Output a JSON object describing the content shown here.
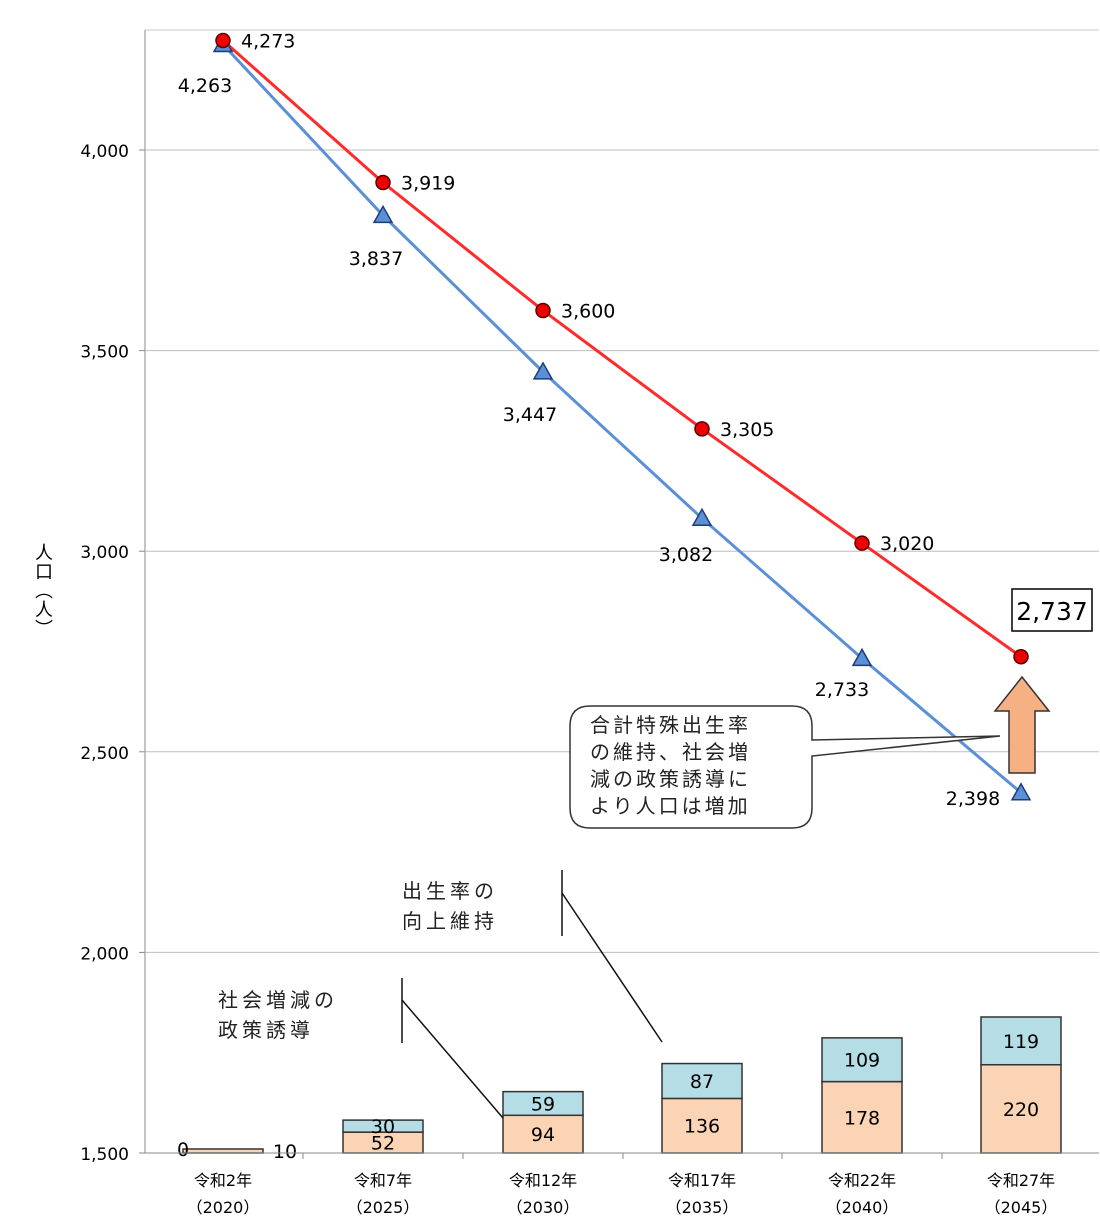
{
  "chart_data": {
    "type": "line+stacked-bar",
    "ylabel": "人口（人）",
    "ylim": [
      1500,
      4250
    ],
    "yticks": [
      "1,500",
      "2,000",
      "2,500",
      "3,000",
      "3,500",
      "4,000"
    ],
    "ytick_values": [
      1500,
      2000,
      2500,
      3000,
      3500,
      4000
    ],
    "categories": [
      "令和2年",
      "令和7年",
      "令和12年",
      "令和17年",
      "令和22年",
      "令和27年"
    ],
    "category_years": [
      "（2020）",
      "（2025）",
      "（2030）",
      "（2035）",
      "（2040）",
      "（2045）"
    ],
    "grid": true,
    "line_series": [
      {
        "values": [
          4273,
          3919,
          3600,
          3305,
          3020,
          2737
        ],
        "labels": [
          "4,273",
          "3,919",
          "3,600",
          "3,305",
          "3,020",
          "2,737"
        ],
        "color": "#ff2a2a",
        "marker": "circle"
      },
      {
        "values": [
          4263,
          3837,
          3447,
          3082,
          2733,
          2398
        ],
        "labels": [
          "4,263",
          "3,837",
          "3,447",
          "3,082",
          "2,733",
          "2,398"
        ],
        "color": "#5b8fd6",
        "marker": "triangle"
      }
    ],
    "bar_series": [
      {
        "values": [
          10,
          52,
          94,
          136,
          178,
          220
        ],
        "labels": [
          "10",
          "52",
          "94",
          "136",
          "178",
          "220"
        ],
        "color": "#fad4b4"
      },
      {
        "values": [
          0,
          30,
          59,
          87,
          109,
          119
        ],
        "labels": [
          "0",
          "30",
          "59",
          "87",
          "109",
          "119"
        ],
        "color": "#b4dde6"
      }
    ],
    "highlight_label": "2,737",
    "callout_lines": [
      "合計特殊出生率",
      "の維持、社会増",
      "減の政策誘導に",
      "より人口は増加"
    ],
    "annotation_birthrate": [
      "出生率の",
      "向上維持"
    ],
    "annotation_social": [
      "社会増減の",
      "政策誘導"
    ]
  }
}
